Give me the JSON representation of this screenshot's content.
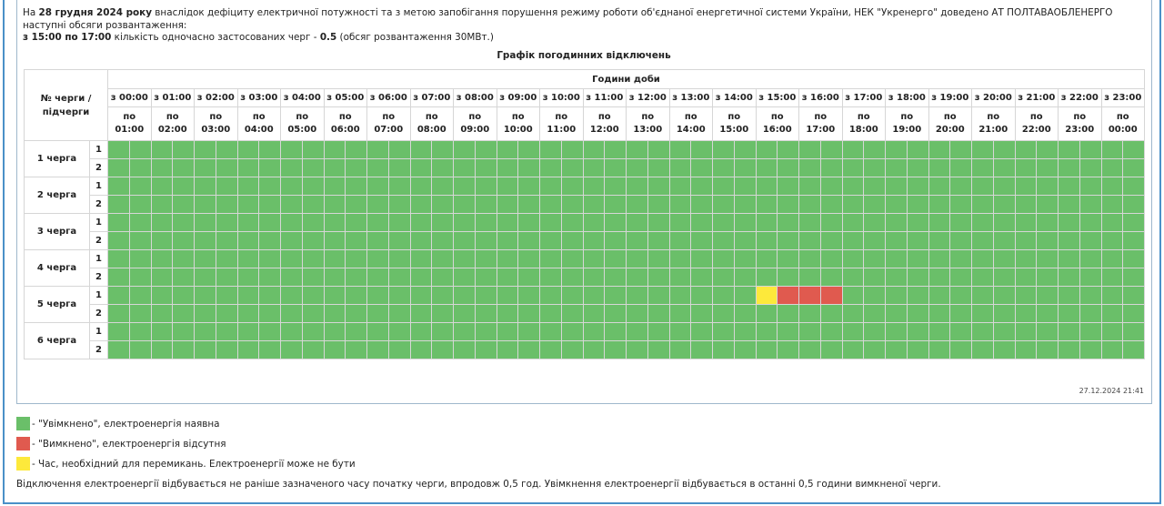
{
  "intro": {
    "p1_a": "На ",
    "p1_date": "28 грудня 2024 року",
    "p1_b": " внаслідок дефіциту електричної потужності та з метою запобігання порушення режиму роботи об'єднаної енергетичної системи України, НЕК \"Укренерго\" доведено АТ ПОЛТАВАОБЛЕНЕРГО наступні обсяги розвантаження:",
    "p2_time": "з 15:00 по 17:00",
    "p2_a": " кількість одночасно застосованих черг - ",
    "p2_count": "0.5",
    "p2_b": " (обсяг розвантаження 30МВт.)"
  },
  "schedule": {
    "title": "Графік погодинних відключень",
    "queue_header": "№ черги / підчерги",
    "hours_header": "Години доби",
    "hours_from": [
      "з 00:00",
      "з 01:00",
      "з 02:00",
      "з 03:00",
      "з 04:00",
      "з 05:00",
      "з 06:00",
      "з 07:00",
      "з 08:00",
      "з 09:00",
      "з 10:00",
      "з 11:00",
      "з 12:00",
      "з 13:00",
      "з 14:00",
      "з 15:00",
      "з 16:00",
      "з 17:00",
      "з 18:00",
      "з 19:00",
      "з 20:00",
      "з 21:00",
      "з 22:00",
      "з 23:00"
    ],
    "hours_to_prefix": "по",
    "hours_to": [
      "01:00",
      "02:00",
      "03:00",
      "04:00",
      "05:00",
      "06:00",
      "07:00",
      "08:00",
      "09:00",
      "10:00",
      "11:00",
      "12:00",
      "13:00",
      "14:00",
      "15:00",
      "16:00",
      "17:00",
      "18:00",
      "19:00",
      "20:00",
      "21:00",
      "22:00",
      "23:00",
      "00:00"
    ],
    "queues": [
      {
        "name": "1 черга",
        "subs": [
          "1",
          "2"
        ]
      },
      {
        "name": "2 черга",
        "subs": [
          "1",
          "2"
        ]
      },
      {
        "name": "3 черга",
        "subs": [
          "1",
          "2"
        ]
      },
      {
        "name": "4 черга",
        "subs": [
          "1",
          "2"
        ]
      },
      {
        "name": "5 черга",
        "subs": [
          "1",
          "2"
        ]
      },
      {
        "name": "6 черга",
        "subs": [
          "1",
          "2"
        ]
      }
    ],
    "status_overrides": [
      {
        "queue": 5,
        "sub": 1,
        "half": 30,
        "status": "maybe"
      },
      {
        "queue": 5,
        "sub": 1,
        "half": 31,
        "status": "off"
      },
      {
        "queue": 5,
        "sub": 1,
        "half": 32,
        "status": "off"
      },
      {
        "queue": 5,
        "sub": 1,
        "half": 33,
        "status": "off"
      }
    ],
    "timestamp": "27.12.2024 21:41"
  },
  "colors": {
    "on": "#6abf69",
    "off": "#e05a4f",
    "maybe": "#fde93b"
  },
  "legend": {
    "on": "- \"Увімкнено\", електроенергія наявна",
    "off": "- \"Вимкнено\", електроенергія відсутня",
    "maybe": "- Час, необхідний для перемикань. Електроенергії може не бути"
  },
  "footnote": "Відключення електроенергії відбувається не раніше зазначеного часу початку черги, впродовж 0,5 год. Увімкнення електроенергії відбувається в останні 0,5 години вимкненої черги."
}
